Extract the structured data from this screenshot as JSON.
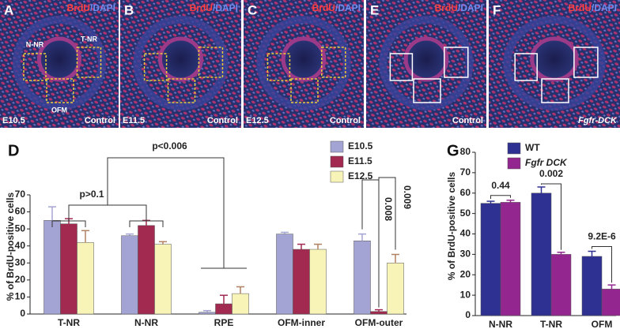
{
  "panels": [
    {
      "letter": "A",
      "stain": [
        "BrdU",
        "/DAPI"
      ],
      "stage": "E10.5",
      "condition": "Control",
      "regions": [
        "N-NR",
        "T-NR",
        "OFM"
      ]
    },
    {
      "letter": "B",
      "stain": [
        "BrdU",
        "/DAPI"
      ],
      "stage": "E11.5",
      "condition": "Control"
    },
    {
      "letter": "C",
      "stain": [
        "BrdU",
        "/DAPI"
      ],
      "stage": "E12.5",
      "condition": "Control"
    },
    {
      "letter": "E",
      "stain": [
        "BrdU",
        "/DAPI"
      ],
      "condition": "Control"
    },
    {
      "letter": "F",
      "stain": [
        "BrdU",
        "/DAPI"
      ],
      "condition": "Fgfr-DCK"
    }
  ],
  "chart_data": [
    {
      "type": "bar",
      "label": "D",
      "y_label": "% of BrdU-positive cells",
      "categories": [
        "T-NR",
        "N-NR",
        "RPE",
        "OFM-inner",
        "OFM-outer"
      ],
      "series": [
        {
          "name": "E10.5",
          "color": "#a3a4d4",
          "values": [
            55,
            46,
            1,
            47,
            43
          ],
          "errors": [
            8,
            1,
            1,
            1,
            4
          ]
        },
        {
          "name": "E11.5",
          "color": "#a2294f",
          "values": [
            53,
            52,
            6,
            38,
            1.5
          ],
          "errors": [
            3,
            3,
            5,
            3,
            1
          ]
        },
        {
          "name": "E12.5",
          "color": "#f8f4b8",
          "values": [
            42,
            41,
            12,
            38,
            30
          ],
          "errors": [
            7,
            1.5,
            4,
            3,
            5
          ]
        }
      ],
      "ylim": [
        0,
        70
      ],
      "yticks": [
        0,
        10,
        20,
        30,
        40,
        50,
        60,
        70
      ],
      "annotations": [
        "p>0.1",
        "p<0.006",
        "0.008",
        "0.009"
      ]
    },
    {
      "type": "bar",
      "label": "G",
      "y_label": "% of BrdU-positive cells",
      "categories": [
        "N-NR",
        "T-NR",
        "OFM"
      ],
      "series": [
        {
          "name": "WT",
          "color": "#2e3192",
          "values": [
            55,
            60,
            29
          ],
          "errors": [
            1,
            3,
            2.5
          ]
        },
        {
          "name": "Fgfr DCK",
          "color": "#93278f",
          "values": [
            55.5,
            30,
            13
          ],
          "errors": [
            1,
            1,
            2
          ]
        }
      ],
      "ylim": [
        0,
        80
      ],
      "yticks": [
        0,
        10,
        20,
        30,
        40,
        50,
        60,
        70,
        80
      ],
      "annotations": [
        "0.44",
        "0.002",
        "9.2E-6"
      ]
    }
  ]
}
